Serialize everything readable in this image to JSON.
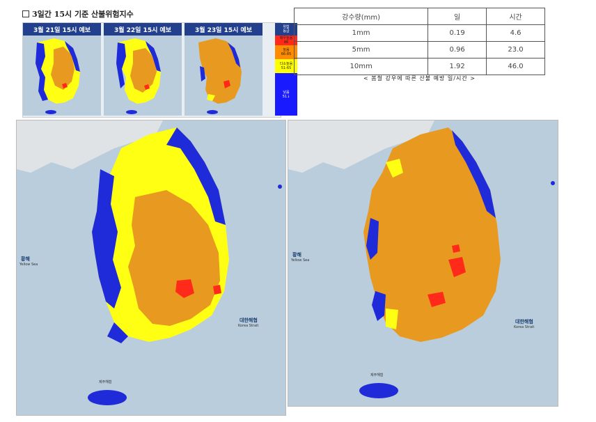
{
  "header": {
    "title": "3일간 15시 기준 산불위험지수"
  },
  "forecast": {
    "panels": [
      {
        "title": "3월 21일 15시 예보"
      },
      {
        "title": "3월 22일 15시 예보"
      },
      {
        "title": "3월 23일 15시 예보"
      }
    ],
    "legend": {
      "title": "위험\n등급",
      "items": [
        {
          "label": "매우높음\n86",
          "color": "#ff2a1a"
        },
        {
          "label": "높음\n66-85",
          "color": "#ff8c00"
        },
        {
          "label": "다소높음\n51-65",
          "color": "#ffff00"
        },
        {
          "label": "낮음\n51↓",
          "color": "#1a1aff"
        }
      ]
    }
  },
  "table": {
    "headers": [
      "강수량(mm)",
      "일",
      "시간"
    ],
    "rows": [
      [
        "1mm",
        "0.19",
        "4.6"
      ],
      [
        "5mm",
        "0.96",
        "23.0"
      ],
      [
        "10mm",
        "1.92",
        "46.0"
      ]
    ],
    "caption": "< 봄철 강우에 따른 산불 예방 일/시간 >"
  },
  "maps": {
    "yellow_sea": "황해",
    "yellow_sea_en": "Yellow Sea",
    "korea_strait": "대한해협",
    "korea_strait_en": "Korea Strait",
    "jeju_strait": "제주해협",
    "colors": {
      "sea": "#b9cddd",
      "land_bg": "#dfe3e6",
      "red": "#ff2a1a",
      "orange": "#e8991f",
      "yellow": "#ffff14",
      "blue": "#1f2bd9"
    }
  }
}
